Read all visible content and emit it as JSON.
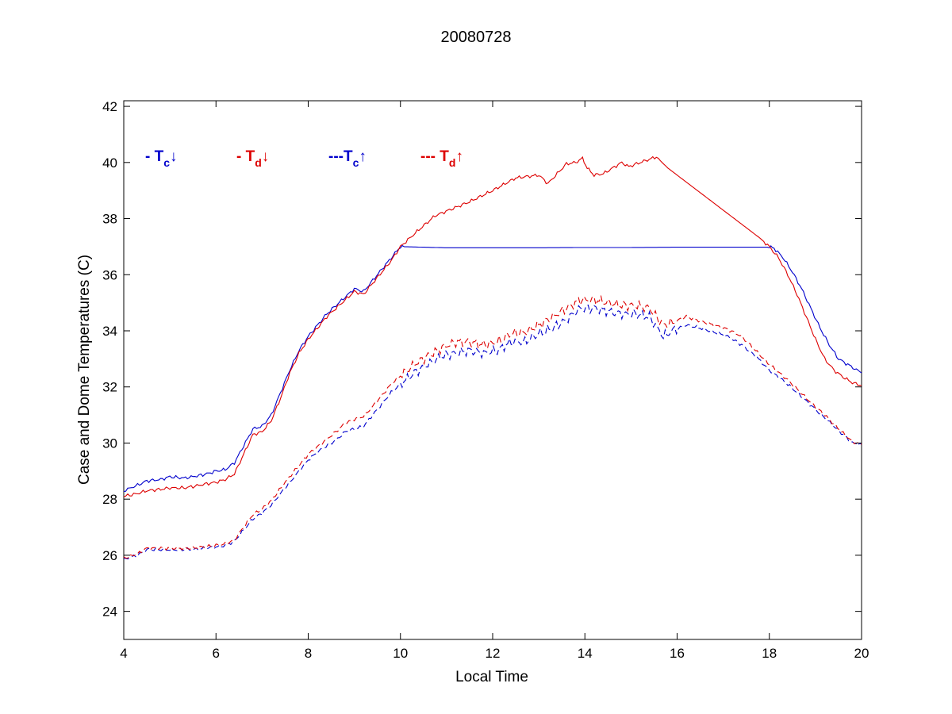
{
  "chart_data": {
    "type": "line",
    "title": "20080728",
    "xlabel": "Local Time",
    "ylabel": "Case and Dome Temperatures (C)",
    "xlim": [
      4,
      20
    ],
    "ylim": [
      23,
      42.2
    ],
    "xticks": [
      4,
      6,
      8,
      10,
      12,
      14,
      16,
      18,
      20
    ],
    "yticks": [
      24,
      26,
      28,
      30,
      32,
      34,
      36,
      38,
      40,
      42
    ],
    "grid": false,
    "legend_position": "top-left",
    "legend": [
      {
        "prefix": "- ",
        "base": "T",
        "sub": "c",
        "arrow": "↓",
        "color": "#0000cc"
      },
      {
        "prefix": "- ",
        "base": "T",
        "sub": "d",
        "arrow": "↓",
        "color": "#dd0000"
      },
      {
        "prefix": "---",
        "base": "T",
        "sub": "c",
        "arrow": "↑",
        "color": "#0000cc"
      },
      {
        "prefix": "--- ",
        "base": "T",
        "sub": "d",
        "arrow": "↑",
        "color": "#dd0000"
      }
    ],
    "series": [
      {
        "key": "tc_down",
        "color": "#0000cc",
        "dash": "solid",
        "x": [
          4.0,
          4.3,
          4.5,
          4.8,
          5.0,
          5.3,
          5.5,
          5.8,
          6.0,
          6.2,
          6.4,
          6.6,
          6.8,
          7.0,
          7.2,
          7.4,
          7.6,
          7.8,
          8.0,
          8.2,
          8.4,
          8.6,
          8.8,
          9.0,
          9.2,
          9.4,
          9.6,
          9.8,
          10.0,
          11.0,
          12.0,
          13.0,
          14.0,
          15.0,
          16.0,
          17.0,
          18.0,
          18.1,
          18.3,
          18.5,
          18.7,
          18.9,
          19.1,
          19.3,
          19.5,
          19.7,
          20.0
        ],
        "y": [
          28.3,
          28.5,
          28.65,
          28.7,
          28.8,
          28.75,
          28.8,
          28.9,
          29.0,
          29.05,
          29.3,
          29.9,
          30.5,
          30.6,
          31.0,
          31.8,
          32.6,
          33.3,
          33.8,
          34.2,
          34.6,
          34.9,
          35.2,
          35.5,
          35.4,
          35.8,
          36.2,
          36.6,
          37.0,
          36.96,
          36.96,
          36.96,
          36.97,
          36.97,
          36.98,
          36.98,
          36.98,
          36.95,
          36.6,
          36.1,
          35.5,
          34.8,
          34.1,
          33.5,
          33.0,
          32.8,
          32.5
        ]
      },
      {
        "key": "td_down",
        "color": "#dd0000",
        "dash": "solid",
        "x": [
          4.0,
          4.3,
          4.5,
          4.8,
          5.0,
          5.3,
          5.5,
          5.8,
          6.0,
          6.2,
          6.4,
          6.6,
          6.8,
          7.0,
          7.2,
          7.4,
          7.6,
          7.8,
          8.0,
          8.2,
          8.4,
          8.6,
          8.8,
          9.0,
          9.2,
          9.4,
          9.6,
          9.8,
          10.0,
          10.4,
          10.75,
          11.5,
          12.0,
          12.5,
          13.0,
          13.2,
          13.4,
          13.6,
          13.8,
          13.95,
          14.05,
          14.2,
          14.4,
          14.6,
          14.8,
          14.95,
          15.2,
          15.55,
          15.8,
          16.2,
          16.6,
          17.0,
          17.4,
          17.8,
          18.0,
          18.2,
          18.4,
          18.6,
          18.8,
          19.0,
          19.2,
          19.4,
          19.6,
          19.8,
          20.0
        ],
        "y": [
          28.1,
          28.2,
          28.3,
          28.35,
          28.4,
          28.4,
          28.45,
          28.55,
          28.6,
          28.7,
          28.9,
          29.6,
          30.3,
          30.4,
          30.8,
          31.6,
          32.5,
          33.2,
          33.7,
          34.1,
          34.5,
          34.8,
          35.1,
          35.4,
          35.3,
          35.7,
          36.1,
          36.5,
          37.0,
          37.6,
          38.1,
          38.6,
          39.0,
          39.45,
          39.55,
          39.25,
          39.6,
          39.95,
          40.0,
          40.15,
          39.8,
          39.55,
          39.6,
          39.8,
          40.0,
          39.85,
          40.0,
          40.2,
          39.8,
          39.3,
          38.8,
          38.3,
          37.8,
          37.3,
          37.0,
          36.6,
          36.0,
          35.3,
          34.5,
          33.7,
          33.0,
          32.6,
          32.35,
          32.15,
          32.05
        ]
      },
      {
        "key": "tc_up",
        "color": "#0000cc",
        "dash": "dashed",
        "x": [
          4.0,
          4.3,
          4.5,
          5.0,
          5.5,
          6.0,
          6.2,
          6.4,
          6.6,
          6.8,
          7.0,
          7.2,
          7.5,
          7.8,
          8.0,
          8.3,
          8.6,
          8.8,
          9.0,
          9.2,
          9.4,
          9.6,
          9.8,
          10.0,
          10.3,
          10.6,
          10.9,
          11.2,
          11.5,
          11.8,
          12.1,
          12.4,
          12.7,
          13.0,
          13.3,
          13.6,
          13.9,
          14.2,
          14.5,
          14.8,
          15.1,
          15.4,
          15.7,
          15.9,
          16.2,
          16.5,
          16.8,
          17.1,
          17.4,
          17.7,
          18.0,
          18.4,
          18.8,
          19.2,
          19.6,
          19.8,
          20.0
        ],
        "y": [
          25.85,
          26.0,
          26.2,
          26.2,
          26.2,
          26.3,
          26.35,
          26.5,
          26.9,
          27.3,
          27.5,
          27.8,
          28.4,
          29.0,
          29.4,
          29.8,
          30.1,
          30.4,
          30.5,
          30.6,
          31.0,
          31.4,
          31.8,
          32.1,
          32.5,
          32.8,
          33.1,
          33.2,
          33.3,
          33.2,
          33.3,
          33.6,
          33.6,
          33.9,
          34.1,
          34.4,
          34.8,
          34.8,
          34.7,
          34.6,
          34.6,
          34.5,
          33.8,
          34.0,
          34.2,
          34.1,
          33.95,
          33.8,
          33.5,
          33.1,
          32.6,
          32.1,
          31.5,
          30.9,
          30.3,
          30.0,
          29.95
        ]
      },
      {
        "key": "td_up",
        "color": "#dd0000",
        "dash": "dashed",
        "x": [
          4.0,
          4.3,
          4.5,
          5.0,
          5.5,
          6.0,
          6.2,
          6.4,
          6.6,
          6.8,
          7.0,
          7.2,
          7.5,
          7.8,
          8.0,
          8.3,
          8.6,
          8.8,
          9.0,
          9.2,
          9.4,
          9.6,
          9.8,
          10.0,
          10.3,
          10.6,
          10.9,
          11.2,
          11.5,
          11.8,
          12.1,
          12.4,
          12.7,
          13.0,
          13.3,
          13.6,
          13.9,
          14.2,
          14.5,
          14.8,
          15.1,
          15.4,
          15.7,
          15.9,
          16.2,
          16.5,
          16.8,
          17.1,
          17.4,
          17.7,
          18.0,
          18.4,
          18.8,
          19.2,
          19.6,
          19.8,
          20.0
        ],
        "y": [
          25.9,
          26.05,
          26.25,
          26.25,
          26.25,
          26.35,
          26.4,
          26.55,
          27.0,
          27.45,
          27.65,
          27.95,
          28.6,
          29.2,
          29.6,
          30.0,
          30.4,
          30.7,
          30.85,
          30.95,
          31.3,
          31.7,
          32.1,
          32.4,
          32.8,
          33.1,
          33.4,
          33.6,
          33.6,
          33.5,
          33.6,
          33.9,
          33.95,
          34.2,
          34.5,
          34.8,
          35.1,
          35.1,
          35.0,
          34.9,
          34.9,
          34.8,
          34.2,
          34.3,
          34.5,
          34.35,
          34.2,
          34.05,
          33.8,
          33.3,
          32.8,
          32.25,
          31.6,
          31.0,
          30.35,
          30.05,
          29.95
        ]
      }
    ]
  }
}
